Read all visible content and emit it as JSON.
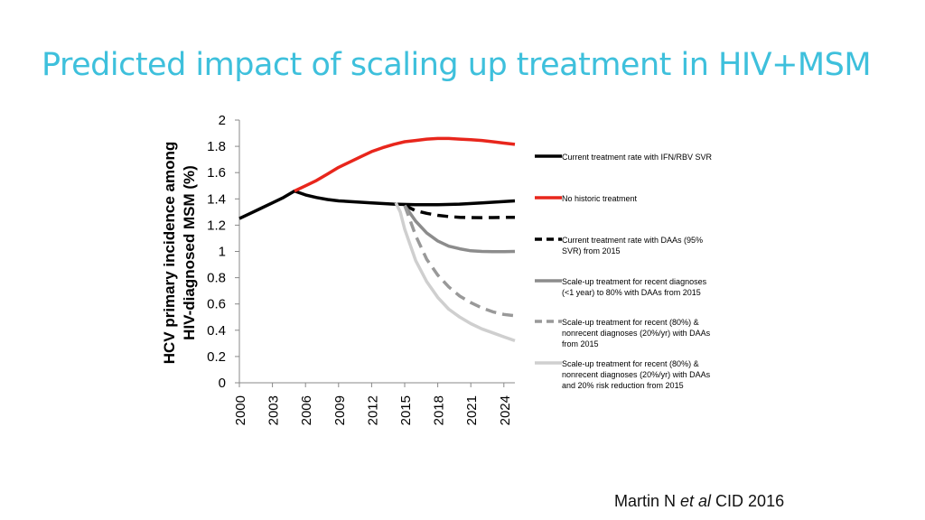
{
  "slide": {
    "title": "Predicted impact of scaling up treatment in HIV+MSM",
    "citation_author": "Martin N ",
    "citation_etal": "et al",
    "citation_rest": " CID 2016"
  },
  "colors": {
    "title": "#3ec0dc",
    "black": "#000000",
    "red": "#e8261c",
    "dark_gray": "#8c8c8c",
    "mid_gray": "#999999",
    "light_gray": "#cfcfcf"
  },
  "chart_data": {
    "type": "line",
    "title": "",
    "xlabel": "",
    "ylabel_line1": "HCV primary incidence among",
    "ylabel_line2": "HIV-diagnosed MSM (%)",
    "xlim": [
      2000,
      2025
    ],
    "ylim": [
      0,
      2
    ],
    "x_ticks": [
      2000,
      2003,
      2006,
      2009,
      2012,
      2015,
      2018,
      2021,
      2024
    ],
    "y_ticks": [
      0,
      0.2,
      0.4,
      0.6,
      0.8,
      1,
      1.2,
      1.4,
      1.6,
      1.8,
      2
    ],
    "y_tick_labels": [
      "0",
      "0.2",
      "0.4",
      "0.6",
      "0.8",
      "1",
      "1.2",
      "1.4",
      "1.6",
      "1.8",
      "2"
    ],
    "x_tick_labels": [
      "2000",
      "2003",
      "2006",
      "2009",
      "2012",
      "2015",
      "2018",
      "2021",
      "2024"
    ],
    "legend_position": "right",
    "series": [
      {
        "name": "Current treatment rate with IFN/RBV SVR",
        "legend_lines": [
          "Current treatment rate with IFN/RBV SVR"
        ],
        "color": "#000000",
        "dash": "solid",
        "x": [
          2000,
          2001,
          2002,
          2003,
          2004,
          2005,
          2006,
          2007,
          2008,
          2009,
          2010,
          2012,
          2014,
          2016,
          2018,
          2020,
          2022,
          2024,
          2025
        ],
        "y": [
          1.25,
          1.29,
          1.33,
          1.37,
          1.41,
          1.46,
          1.43,
          1.41,
          1.395,
          1.385,
          1.38,
          1.37,
          1.36,
          1.355,
          1.355,
          1.36,
          1.37,
          1.38,
          1.385
        ]
      },
      {
        "name": "No historic treatment",
        "legend_lines": [
          "No historic treatment"
        ],
        "color": "#e8261c",
        "dash": "solid",
        "x": [
          2005,
          2006,
          2007,
          2008,
          2009,
          2010,
          2011,
          2012,
          2013,
          2014,
          2015,
          2016,
          2017,
          2018,
          2019,
          2020,
          2021,
          2022,
          2023,
          2024,
          2025
        ],
        "y": [
          1.46,
          1.5,
          1.54,
          1.59,
          1.64,
          1.68,
          1.72,
          1.76,
          1.79,
          1.815,
          1.835,
          1.845,
          1.855,
          1.86,
          1.86,
          1.855,
          1.85,
          1.845,
          1.835,
          1.825,
          1.815
        ]
      },
      {
        "name": "Current treatment rate with DAAs (95% SVR) from 2015",
        "legend_lines": [
          "Current treatment rate with DAAs (95%",
          "SVR) from 2015"
        ],
        "color": "#000000",
        "dash": "dashed",
        "x": [
          2015,
          2016,
          2017,
          2018,
          2019,
          2020,
          2021,
          2022,
          2023,
          2024,
          2025
        ],
        "y": [
          1.35,
          1.31,
          1.29,
          1.275,
          1.265,
          1.26,
          1.258,
          1.257,
          1.258,
          1.26,
          1.26
        ]
      },
      {
        "name": "Scale-up treatment for recent diagnoses (<1 year) to 80% with DAAs from 2015",
        "legend_lines": [
          "Scale-up treatment for recent diagnoses",
          "(<1 year) to 80% with DAAs from 2015"
        ],
        "color": "#8c8c8c",
        "dash": "solid",
        "x": [
          2015,
          2016,
          2017,
          2018,
          2019,
          2020,
          2021,
          2022,
          2023,
          2024,
          2025
        ],
        "y": [
          1.35,
          1.23,
          1.14,
          1.08,
          1.04,
          1.02,
          1.005,
          1.0,
          0.998,
          0.998,
          1.0
        ]
      },
      {
        "name": "Scale-up treatment for recent (80%) & nonrecent diagnoses (20%/yr) with DAAs from 2015",
        "legend_lines": [
          "Scale-up treatment for recent (80%) &",
          "nonrecent diagnoses (20%/yr) with DAAs",
          "from 2015"
        ],
        "color": "#999999",
        "dash": "dashed",
        "x": [
          2015,
          2016,
          2017,
          2018,
          2019,
          2020,
          2021,
          2022,
          2023,
          2024,
          2025
        ],
        "y": [
          1.35,
          1.12,
          0.94,
          0.82,
          0.73,
          0.66,
          0.61,
          0.57,
          0.54,
          0.52,
          0.51
        ]
      },
      {
        "name": "Scale-up treatment for recent (80%) & nonrecent diagnoses (20%/yr) with DAAs and 20% risk reduction from 2015",
        "legend_lines": [
          "Scale-up treatment for recent (80%) &",
          "nonrecent diagnoses (20%/yr) with DAAs",
          "and 20% risk reduction from 2015"
        ],
        "color": "#cfcfcf",
        "dash": "solid",
        "x": [
          2014.2,
          2014.6,
          2015,
          2016,
          2017,
          2018,
          2019,
          2020,
          2021,
          2022,
          2023,
          2024,
          2025
        ],
        "y": [
          1.37,
          1.3,
          1.17,
          0.93,
          0.77,
          0.65,
          0.56,
          0.5,
          0.45,
          0.41,
          0.38,
          0.35,
          0.32
        ]
      }
    ]
  }
}
